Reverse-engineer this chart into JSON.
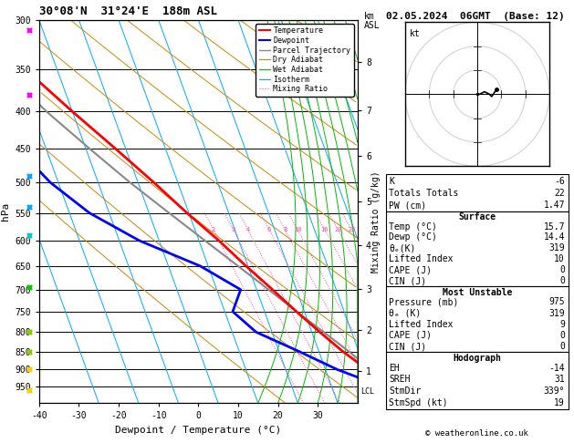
{
  "title_left": "30°08'N  31°24'E  188m ASL",
  "title_right": "02.05.2024  06GMT  (Base: 12)",
  "xlabel": "Dewpoint / Temperature (°C)",
  "ylabel_left": "hPa",
  "pressure_ticks": [
    300,
    350,
    400,
    450,
    500,
    550,
    600,
    650,
    700,
    750,
    800,
    850,
    900,
    950
  ],
  "temp_min": -40,
  "temp_max": 40,
  "temp_ticks": [
    -40,
    -30,
    -20,
    -10,
    0,
    10,
    20,
    30
  ],
  "km_ticks": [
    1,
    2,
    3,
    4,
    5,
    6,
    7,
    8
  ],
  "km_pressures": [
    904,
    795,
    698,
    609,
    531,
    460,
    398,
    342
  ],
  "lcl_pressure": 965,
  "mixing_ratio_values": [
    2,
    3,
    4,
    6,
    8,
    10,
    16,
    20,
    25
  ],
  "temp_profile": {
    "pressure": [
      975,
      950,
      925,
      900,
      850,
      800,
      750,
      700,
      650,
      600,
      550,
      500,
      450,
      400,
      350,
      300
    ],
    "temp": [
      15.7,
      14.0,
      12.0,
      10.5,
      6.0,
      2.0,
      -2.0,
      -6.0,
      -10.5,
      -15.0,
      -20.5,
      -26.0,
      -32.5,
      -40.0,
      -48.0,
      -54.0
    ]
  },
  "dewpoint_profile": {
    "pressure": [
      975,
      950,
      925,
      900,
      850,
      800,
      750,
      700,
      650,
      600,
      550,
      500,
      450,
      400,
      350,
      300
    ],
    "temp": [
      14.4,
      12.0,
      8.0,
      3.0,
      -5.0,
      -14.0,
      -18.0,
      -14.0,
      -22.0,
      -35.0,
      -45.0,
      -52.0,
      -57.0,
      -60.0,
      -62.0,
      -63.0
    ]
  },
  "parcel_profile": {
    "pressure": [
      975,
      950,
      900,
      850,
      800,
      750,
      700,
      650,
      600,
      550,
      500,
      450,
      400,
      350,
      300
    ],
    "temp": [
      15.7,
      14.5,
      11.5,
      7.5,
      3.0,
      -2.0,
      -7.0,
      -12.5,
      -18.5,
      -25.0,
      -32.0,
      -39.0,
      -46.5,
      -53.5,
      -60.0
    ]
  },
  "color_temperature": "#ff0000",
  "color_dewpoint": "#0000ff",
  "color_parcel": "#888888",
  "color_dry_adiabat": "#cc8800",
  "color_wet_adiabat": "#00bb00",
  "color_isotherm": "#00aaff",
  "color_mixing_ratio": "#ff44aa",
  "color_background": "#ffffff",
  "legend_entries": [
    "Temperature",
    "Dewpoint",
    "Parcel Trajectory",
    "Dry Adiabat",
    "Wet Adiabat",
    "Isotherm",
    "Mixing Ratio"
  ],
  "wind_barb_pressures": [
    310,
    380,
    490,
    540,
    590,
    695,
    800,
    850,
    900,
    960
  ],
  "wind_barb_colors": [
    "#ff00ff",
    "#ff00ff",
    "#00aaff",
    "#00aaff",
    "#00cccc",
    "#00cc00",
    "#88cc00",
    "#88cc00",
    "#ffcc00",
    "#ffcc00"
  ],
  "stats": {
    "K": -6,
    "Totals_Totals": 22,
    "PW_cm": 1.47,
    "Surf_Temp": 15.7,
    "Surf_Dewp": 14.4,
    "Surf_ThetaE": 319,
    "Surf_LI": 10,
    "Surf_CAPE": 0,
    "Surf_CIN": 0,
    "MU_Pressure": 975,
    "MU_ThetaE": 319,
    "MU_LI": 9,
    "MU_CAPE": 0,
    "MU_CIN": 0,
    "Hodo_EH": -14,
    "Hodo_SREH": 31,
    "Hodo_StmDir": "339°",
    "Hodo_StmSpd": 19
  },
  "copyright": "© weatheronline.co.uk"
}
